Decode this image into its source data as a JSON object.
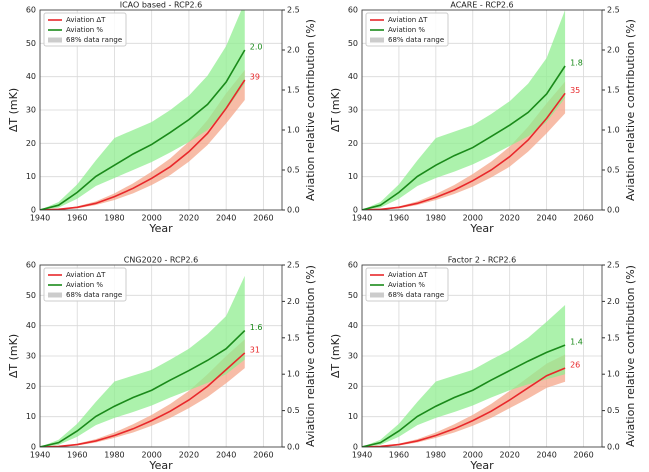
{
  "chart_data": [
    {
      "type": "line",
      "title": "ICAO based - RCP2.6",
      "xlabel": "Year",
      "ylabel": "ΔT (mK)",
      "y2label": "Aviation relative contribution (%)",
      "x": [
        1940,
        1950,
        1960,
        1970,
        1980,
        1990,
        2000,
        2010,
        2020,
        2030,
        2040,
        2050
      ],
      "xlim": [
        1940,
        2070
      ],
      "xticks": [
        1940,
        1960,
        1980,
        2000,
        2020,
        2040,
        2060
      ],
      "ylim": [
        0,
        60
      ],
      "yticks": [
        0,
        10,
        20,
        30,
        40,
        50,
        60
      ],
      "y2lim": [
        0,
        2.5
      ],
      "y2ticks": [
        {
          "value": 0,
          "label": "0.0"
        },
        0.5,
        {
          "value": 1,
          "label": "1.0"
        },
        1.5,
        {
          "value": 2,
          "label": "2.0"
        },
        2.5
      ],
      "grid": true,
      "band_legend": "68% data range",
      "band_legend_color": "#cccccc",
      "series": [
        {
          "name": "Aviation ΔT",
          "color": "#e8282b",
          "band_color": "#f4a58a",
          "axis": "y",
          "values": [
            0,
            0.2,
            0.8,
            2,
            4,
            6.5,
            9.5,
            13,
            17.5,
            23,
            30.5,
            39
          ],
          "lower": [
            0,
            0.1,
            0.5,
            1.5,
            3,
            5,
            7.5,
            10.5,
            14.5,
            19.5,
            26,
            33
          ],
          "upper": [
            0,
            0.3,
            1.1,
            2.6,
            5,
            8,
            11.5,
            15.5,
            20.5,
            27,
            35,
            42
          ]
        },
        {
          "name": "Aviation %",
          "color": "#1a8a1a",
          "band_color": "#90ee90",
          "axis": "y2",
          "values": [
            0,
            0.06,
            0.22,
            0.42,
            0.56,
            0.7,
            0.82,
            0.97,
            1.13,
            1.32,
            1.6,
            2.0
          ],
          "value_labels": [
            null,
            null,
            null,
            null,
            null,
            null,
            null,
            null,
            null,
            null,
            null,
            "2.0"
          ],
          "lower": [
            0,
            0.03,
            0.14,
            0.3,
            0.4,
            0.5,
            0.6,
            0.72,
            0.85,
            1.0,
            1.25,
            1.58
          ],
          "upper": [
            0,
            0.1,
            0.32,
            0.62,
            0.9,
            1.0,
            1.1,
            1.25,
            1.43,
            1.68,
            2.05,
            2.6
          ]
        }
      ]
    },
    {
      "type": "line",
      "title": "ACARE - RCP2.6",
      "xlabel": "Year",
      "ylabel": "ΔT (mK)",
      "y2label": "Aviation relative contribution (%)",
      "x": [
        1940,
        1950,
        1960,
        1970,
        1980,
        1990,
        2000,
        2010,
        2020,
        2030,
        2040,
        2050
      ],
      "xlim": [
        1940,
        2070
      ],
      "xticks": [
        1940,
        1960,
        1980,
        2000,
        2020,
        2040,
        2060
      ],
      "ylim": [
        0,
        60
      ],
      "yticks": [
        0,
        10,
        20,
        30,
        40,
        50,
        60
      ],
      "y2lim": [
        0,
        2.5
      ],
      "y2ticks": [
        {
          "value": 0,
          "label": "0.0"
        },
        0.5,
        {
          "value": 1,
          "label": "1.0"
        },
        1.5,
        {
          "value": 2,
          "label": "2.0"
        },
        2.5
      ],
      "grid": true,
      "band_legend": "68% data range",
      "band_legend_color": "#cccccc",
      "series": [
        {
          "name": "Aviation ΔT",
          "color": "#e8282b",
          "band_color": "#f4a58a",
          "axis": "y",
          "values": [
            0,
            0.2,
            0.8,
            2,
            3.8,
            6,
            8.8,
            12,
            16,
            21,
            27.5,
            35
          ],
          "lower": [
            0,
            0.1,
            0.5,
            1.5,
            3,
            4.8,
            7,
            9.8,
            13,
            17.5,
            23,
            29
          ],
          "upper": [
            0,
            0.3,
            1.1,
            2.6,
            4.8,
            7.5,
            10.8,
            14.5,
            19,
            25,
            32,
            38.5
          ]
        },
        {
          "name": "Aviation %",
          "color": "#1a8a1a",
          "band_color": "#90ee90",
          "axis": "y2",
          "values": [
            0,
            0.06,
            0.22,
            0.42,
            0.56,
            0.68,
            0.78,
            0.92,
            1.06,
            1.22,
            1.45,
            1.8
          ],
          "lower": [
            0,
            0.03,
            0.14,
            0.3,
            0.4,
            0.48,
            0.57,
            0.68,
            0.8,
            0.92,
            1.1,
            1.4
          ],
          "upper": [
            0,
            0.1,
            0.32,
            0.62,
            0.9,
            0.98,
            1.06,
            1.2,
            1.36,
            1.58,
            1.9,
            2.5
          ]
        }
      ]
    },
    {
      "type": "line",
      "title": "CNG2020 - RCP2.6",
      "xlabel": "Year",
      "ylabel": "ΔT (mK)",
      "y2label": "Aviation relative contribution (%)",
      "x": [
        1940,
        1950,
        1960,
        1970,
        1980,
        1990,
        2000,
        2010,
        2020,
        2030,
        2040,
        2050
      ],
      "xlim": [
        1940,
        2070
      ],
      "xticks": [
        1940,
        1960,
        1980,
        2000,
        2020,
        2040,
        2060
      ],
      "ylim": [
        0,
        60
      ],
      "yticks": [
        0,
        10,
        20,
        30,
        40,
        50,
        60
      ],
      "y2lim": [
        0,
        2.5
      ],
      "y2ticks": [
        {
          "value": 0,
          "label": "0.0"
        },
        0.5,
        {
          "value": 1,
          "label": "1.0"
        },
        1.5,
        {
          "value": 2,
          "label": "2.0"
        },
        2.5
      ],
      "grid": true,
      "band_legend": "68% data range",
      "band_legend_color": "#cccccc",
      "series": [
        {
          "name": "Aviation ΔT",
          "color": "#e8282b",
          "band_color": "#f4a58a",
          "axis": "y",
          "values": [
            0,
            0.2,
            0.8,
            2,
            3.8,
            6,
            8.7,
            11.8,
            15.5,
            20,
            25.5,
            31
          ],
          "lower": [
            0,
            0.1,
            0.5,
            1.5,
            3,
            4.8,
            7,
            9.6,
            12.8,
            16.5,
            21,
            26
          ],
          "upper": [
            0,
            0.3,
            1.1,
            2.6,
            4.8,
            7.5,
            10.6,
            14.2,
            18.5,
            24,
            30,
            35.5
          ]
        },
        {
          "name": "Aviation %",
          "color": "#1a8a1a",
          "band_color": "#90ee90",
          "axis": "y2",
          "values": [
            0,
            0.06,
            0.22,
            0.42,
            0.56,
            0.68,
            0.78,
            0.92,
            1.05,
            1.19,
            1.35,
            1.6
          ],
          "lower": [
            0,
            0.03,
            0.14,
            0.3,
            0.4,
            0.48,
            0.57,
            0.68,
            0.78,
            0.88,
            1.0,
            1.2
          ],
          "upper": [
            0,
            0.1,
            0.32,
            0.62,
            0.9,
            0.98,
            1.06,
            1.2,
            1.35,
            1.55,
            1.8,
            2.35
          ]
        }
      ]
    },
    {
      "type": "line",
      "title": "Factor 2 - RCP2.6",
      "xlabel": "Year",
      "ylabel": "ΔT (mK)",
      "y2label": "Aviation relative contribution (%)",
      "x": [
        1940,
        1950,
        1960,
        1970,
        1980,
        1990,
        2000,
        2010,
        2020,
        2030,
        2040,
        2050
      ],
      "xlim": [
        1940,
        2070
      ],
      "xticks": [
        1940,
        1960,
        1980,
        2000,
        2020,
        2040,
        2060
      ],
      "ylim": [
        0,
        60
      ],
      "yticks": [
        0,
        10,
        20,
        30,
        40,
        50,
        60
      ],
      "y2lim": [
        0,
        2.5
      ],
      "y2ticks": [
        {
          "value": 0,
          "label": "0.0"
        },
        0.5,
        {
          "value": 1,
          "label": "1.0"
        },
        1.5,
        {
          "value": 2,
          "label": "2.0"
        },
        2.5
      ],
      "grid": true,
      "band_legend": "68% data range",
      "band_legend_color": "#cccccc",
      "series": [
        {
          "name": "Aviation ΔT",
          "color": "#e8282b",
          "band_color": "#f4a58a",
          "axis": "y",
          "values": [
            0,
            0.2,
            0.8,
            2,
            3.8,
            6,
            8.7,
            11.8,
            15.5,
            19.5,
            23.5,
            26
          ],
          "lower": [
            0,
            0.1,
            0.5,
            1.5,
            3,
            4.8,
            7,
            9.6,
            12.8,
            16,
            19.5,
            21.5
          ],
          "upper": [
            0,
            0.3,
            1.1,
            2.6,
            4.8,
            7.5,
            10.6,
            14.2,
            18.5,
            23,
            27.5,
            30.5
          ]
        },
        {
          "name": "Aviation %",
          "color": "#1a8a1a",
          "band_color": "#90ee90",
          "axis": "y2",
          "values": [
            0,
            0.06,
            0.22,
            0.42,
            0.56,
            0.68,
            0.78,
            0.92,
            1.05,
            1.18,
            1.3,
            1.4
          ],
          "lower": [
            0,
            0.03,
            0.14,
            0.3,
            0.4,
            0.48,
            0.57,
            0.68,
            0.78,
            0.86,
            0.93,
            1.0
          ],
          "upper": [
            0,
            0.1,
            0.32,
            0.62,
            0.9,
            0.98,
            1.06,
            1.2,
            1.33,
            1.5,
            1.72,
            1.95
          ]
        }
      ]
    }
  ]
}
